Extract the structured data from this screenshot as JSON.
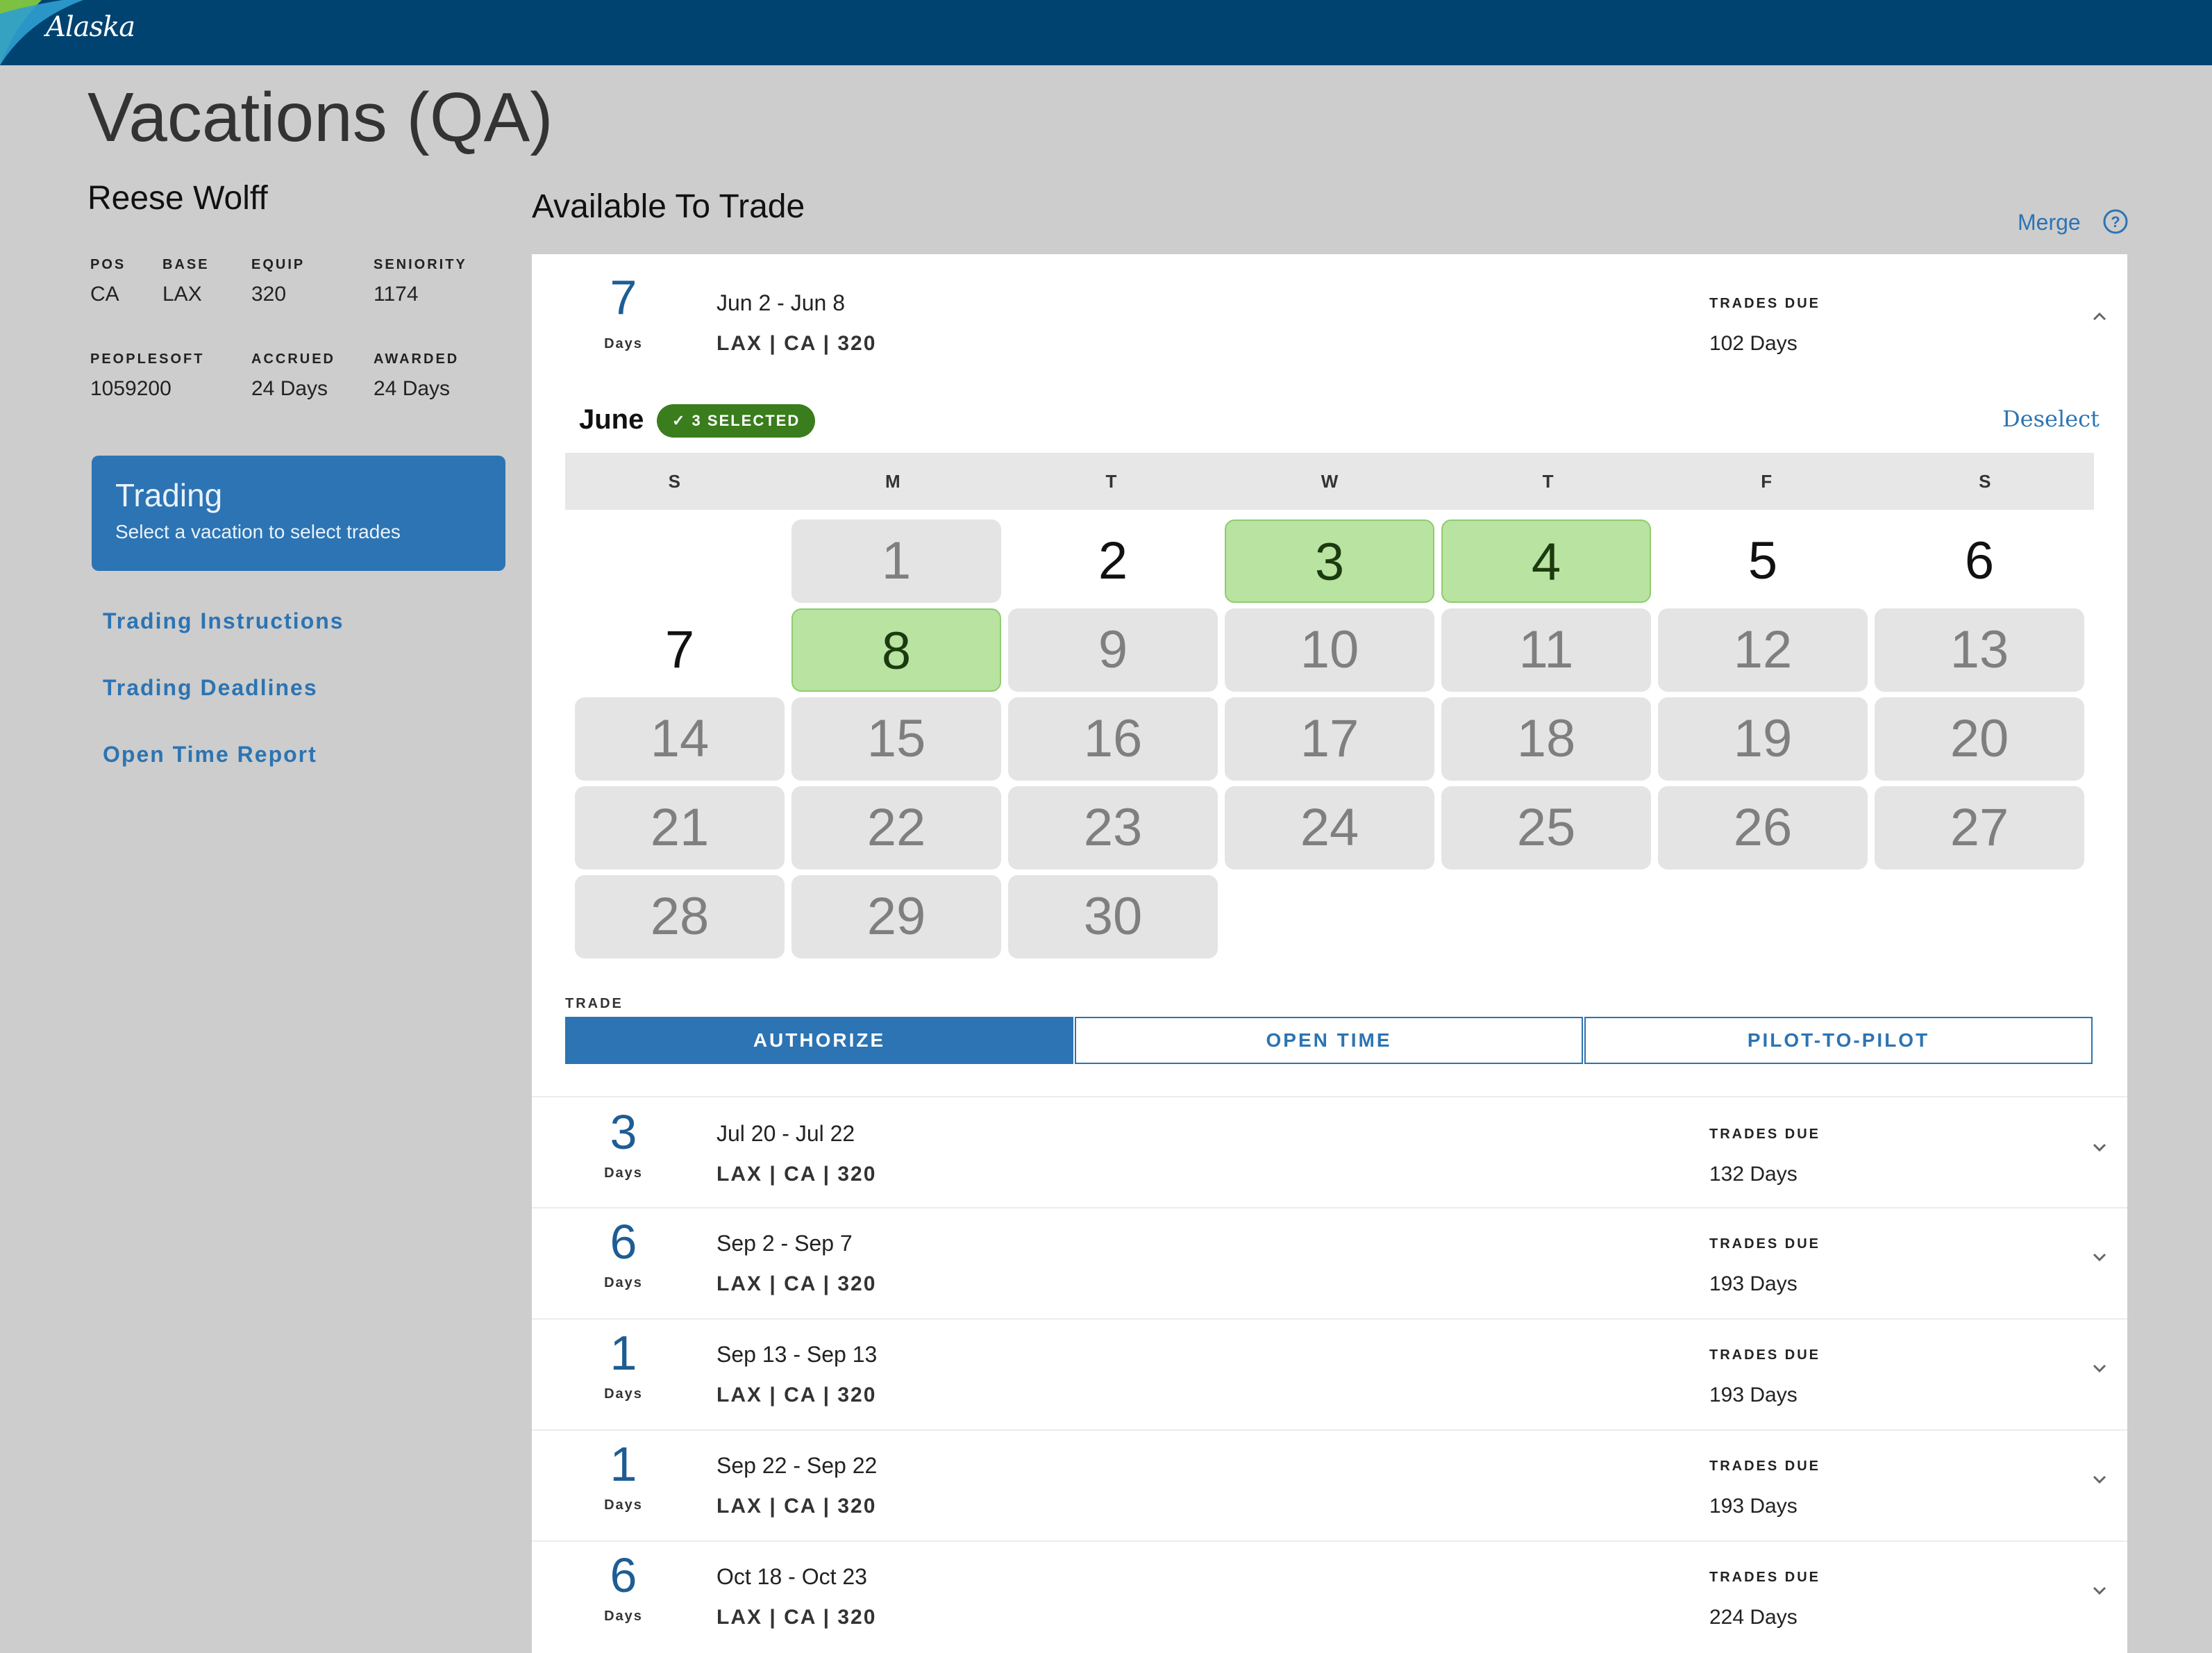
{
  "app": {
    "logo": "Alaska",
    "title": "Vacations (QA)"
  },
  "pilot": {
    "name": "Reese Wolff",
    "stats": [
      {
        "key": "POS",
        "value": "CA"
      },
      {
        "key": "BASE",
        "value": "LAX"
      },
      {
        "key": "EQUIP",
        "value": "320"
      },
      {
        "key": "SENIORITY",
        "value": "1174"
      },
      {
        "key": "PEOPLESOFT",
        "value": "1059200"
      },
      {
        "key": "ACCRUED",
        "value": "24 Days"
      },
      {
        "key": "AWARDED",
        "value": "24 Days"
      }
    ]
  },
  "trading_card": {
    "title": "Trading",
    "subtitle": "Select a vacation to select trades"
  },
  "side_links": [
    "Trading Instructions",
    "Trading Deadlines",
    "Open Time Report"
  ],
  "available": {
    "title": "Available To Trade",
    "merge_label": "Merge",
    "help_icon": "question-circle-icon"
  },
  "vacations": [
    {
      "days": "7",
      "days_label": "Days",
      "dates": "Jun 2 - Jun 8",
      "meta": "LAX | CA | 320",
      "due_label": "TRADES DUE",
      "due": "102 Days",
      "expanded": true
    },
    {
      "days": "3",
      "days_label": "Days",
      "dates": "Jul 20 - Jul 22",
      "meta": "LAX | CA | 320",
      "due_label": "TRADES DUE",
      "due": "132 Days",
      "expanded": false
    },
    {
      "days": "6",
      "days_label": "Days",
      "dates": "Sep 2 - Sep 7",
      "meta": "LAX | CA | 320",
      "due_label": "TRADES DUE",
      "due": "193 Days",
      "expanded": false
    },
    {
      "days": "1",
      "days_label": "Days",
      "dates": "Sep 13 - Sep 13",
      "meta": "LAX | CA | 320",
      "due_label": "TRADES DUE",
      "due": "193 Days",
      "expanded": false
    },
    {
      "days": "1",
      "days_label": "Days",
      "dates": "Sep 22 - Sep 22",
      "meta": "LAX | CA | 320",
      "due_label": "TRADES DUE",
      "due": "193 Days",
      "expanded": false
    },
    {
      "days": "6",
      "days_label": "Days",
      "dates": "Oct 18 - Oct 23",
      "meta": "LAX | CA | 320",
      "due_label": "TRADES DUE",
      "due": "224 Days",
      "expanded": false
    }
  ],
  "calendar": {
    "month": "June",
    "selected_badge": "✓ 3 SELECTED",
    "deselect_label": "Deselect",
    "weekdays": [
      "S",
      "M",
      "T",
      "W",
      "T",
      "F",
      "S"
    ],
    "first_weekday_index": 1,
    "days_in_month": 30,
    "selected_days": [
      3,
      4,
      8
    ],
    "open_days": [
      2,
      5,
      6,
      7
    ]
  },
  "trade": {
    "label": "TRADE",
    "buttons": [
      "AUTHORIZE",
      "OPEN TIME",
      "PILOT-TO-PILOT"
    ],
    "active_index": 0
  },
  "colors": {
    "brand_navy": "#004370",
    "accent_blue": "#2c74b3",
    "selected_green": "#b8e3a0",
    "badge_green": "#3a7d1d"
  }
}
